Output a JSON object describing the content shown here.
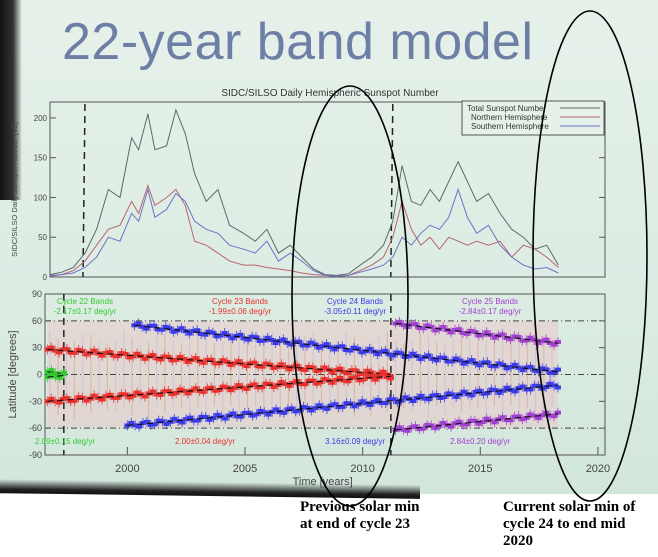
{
  "slide_title": "22-year band model",
  "chart_data": [
    {
      "type": "line",
      "title": "SIDC/SILSO Daily Hemispheric Sunspot Number",
      "xlabel": "",
      "ylabel": "SIDC/SILSO Daily Sunspot Number [V2]",
      "xlim": [
        1996.5,
        2020.3
      ],
      "ylim": [
        0,
        220
      ],
      "yticks": [
        "0",
        "50",
        "100",
        "150",
        "200"
      ],
      "legend_position": "top-right",
      "dashed_markers_year": [
        1998.0,
        2011.2
      ],
      "series": [
        {
          "name": "Total Sunspot Number",
          "color": "#5a6a6a",
          "x": [
            1996.5,
            1997.0,
            1997.5,
            1998.0,
            1998.5,
            1999.0,
            1999.5,
            2000.0,
            2000.3,
            2000.7,
            2001.0,
            2001.5,
            2001.9,
            2002.3,
            2002.7,
            2003.2,
            2003.7,
            2004.2,
            2004.8,
            2005.3,
            2005.8,
            2006.3,
            2006.8,
            2007.3,
            2007.8,
            2008.3,
            2008.8,
            2009.3,
            2009.8,
            2010.3,
            2010.8,
            2011.2,
            2011.6,
            2012.0,
            2012.4,
            2012.8,
            2013.2,
            2013.6,
            2014.0,
            2014.4,
            2014.8,
            2015.3,
            2015.8,
            2016.3,
            2016.8,
            2017.3,
            2017.8,
            2018.3
          ],
          "y": [
            3,
            6,
            12,
            30,
            60,
            110,
            100,
            175,
            160,
            205,
            160,
            165,
            210,
            180,
            130,
            95,
            110,
            65,
            55,
            45,
            60,
            30,
            40,
            25,
            10,
            3,
            2,
            4,
            15,
            25,
            40,
            70,
            140,
            95,
            90,
            110,
            95,
            120,
            145,
            120,
            95,
            105,
            80,
            60,
            50,
            35,
            40,
            15
          ]
        },
        {
          "name": "Northern Hemisphere",
          "color": "#b8646e",
          "x": [
            1996.5,
            1997.0,
            1997.5,
            1998.0,
            1998.5,
            1999.0,
            1999.5,
            2000.0,
            2000.3,
            2000.7,
            2001.0,
            2001.5,
            2001.9,
            2002.3,
            2002.7,
            2003.2,
            2003.7,
            2004.2,
            2004.8,
            2005.3,
            2005.8,
            2006.3,
            2006.8,
            2007.3,
            2007.8,
            2008.3,
            2008.8,
            2009.3,
            2009.8,
            2010.3,
            2010.8,
            2011.2,
            2011.6,
            2012.0,
            2012.4,
            2012.8,
            2013.2,
            2013.6,
            2014.0,
            2014.4,
            2014.8,
            2015.3,
            2015.8,
            2016.3,
            2016.8,
            2017.3,
            2017.8,
            2018.3
          ],
          "y": [
            2,
            3,
            8,
            20,
            40,
            60,
            65,
            95,
            80,
            115,
            90,
            100,
            110,
            90,
            45,
            40,
            30,
            20,
            15,
            15,
            12,
            10,
            8,
            5,
            3,
            2,
            1,
            2,
            8,
            15,
            25,
            50,
            95,
            60,
            40,
            50,
            35,
            50,
            45,
            40,
            45,
            40,
            45,
            25,
            40,
            35,
            25,
            12
          ]
        },
        {
          "name": "Southern Hemisphere",
          "color": "#6b72c8",
          "x": [
            1996.5,
            1997.0,
            1997.5,
            1998.0,
            1998.5,
            1999.0,
            1999.5,
            2000.0,
            2000.3,
            2000.7,
            2001.0,
            2001.5,
            2001.9,
            2002.3,
            2002.7,
            2003.2,
            2003.7,
            2004.2,
            2004.8,
            2005.3,
            2005.8,
            2006.3,
            2006.8,
            2007.3,
            2007.8,
            2008.3,
            2008.8,
            2009.3,
            2009.8,
            2010.3,
            2010.8,
            2011.2,
            2011.6,
            2012.0,
            2012.4,
            2012.8,
            2013.2,
            2013.6,
            2014.0,
            2014.4,
            2014.8,
            2015.3,
            2015.8,
            2016.3,
            2016.8,
            2017.3,
            2017.8,
            2018.3
          ],
          "y": [
            1,
            3,
            5,
            12,
            25,
            50,
            45,
            80,
            70,
            110,
            75,
            85,
            105,
            95,
            70,
            60,
            55,
            40,
            35,
            30,
            45,
            20,
            30,
            20,
            8,
            2,
            1,
            2,
            6,
            10,
            15,
            25,
            50,
            40,
            55,
            65,
            60,
            75,
            110,
            75,
            55,
            65,
            40,
            25,
            15,
            10,
            12,
            5
          ]
        }
      ]
    },
    {
      "type": "scatter",
      "title": "",
      "xlabel": "Time [years]",
      "ylabel": "Latitude [degrees]",
      "xlim": [
        1996.5,
        2020.3
      ],
      "ylim": [
        -90,
        90
      ],
      "xticks": [
        "2000",
        "2005",
        "2010",
        "2015",
        "2020"
      ],
      "yticks": [
        "90",
        "60",
        "30",
        "0",
        "-30",
        "-60",
        "-90"
      ],
      "dashed_markers_year": [
        1997.3,
        2011.2
      ],
      "series": [
        {
          "name": "Cycle 22 Bands",
          "color": "#33cc33",
          "label_top": "Cycle 22 Bands",
          "rate_north": "-2.17±0.17 deg/yr",
          "rate_south": "2.09±0.15 deg/yr",
          "north": [
            [
              1996.6,
              3
            ],
            [
              1997.3,
              1
            ]
          ],
          "south": [
            [
              1996.6,
              -3
            ],
            [
              1997.3,
              -1
            ]
          ]
        },
        {
          "name": "Cycle 23 Bands",
          "color": "#e8302c",
          "label_top": "Cycle 23 Bands",
          "rate_north": "-1.99±0.06 deg/yr",
          "rate_south": "2.00±0.04 deg/yr",
          "north": [
            [
              1996.6,
              28
            ],
            [
              2011.2,
              0
            ]
          ],
          "south": [
            [
              1996.6,
              -30
            ],
            [
              2011.2,
              -2
            ]
          ]
        },
        {
          "name": "Cycle 24 Bands",
          "color": "#3a3ae6",
          "label_top": "Cycle 24 Bands",
          "rate_north": "-3.05±0.11 deg/yr",
          "rate_south": "3.16±0.09 deg/yr",
          "north": [
            [
              2000.3,
              55
            ],
            [
              2018.3,
              3
            ]
          ],
          "south": [
            [
              2000.0,
              -57
            ],
            [
              2018.3,
              -12
            ]
          ]
        },
        {
          "name": "Cycle 25 Bands",
          "color": "#a040d0",
          "label_top": "Cycle 25 Bands",
          "rate_north": "-2.84±0.17 deg/yr",
          "rate_south": "2.84±0.20 deg/yr",
          "north": [
            [
              2011.4,
              57
            ],
            [
              2018.3,
              35
            ]
          ],
          "south": [
            [
              2011.4,
              -62
            ],
            [
              2018.3,
              -44
            ]
          ]
        }
      ]
    }
  ],
  "annotations": [
    {
      "text_line1": "Previous solar min",
      "text_line2": "at end of cycle 23"
    },
    {
      "text_line1": "Current solar min of",
      "text_line2": "cycle 24 to end mid",
      "text_line3": "2020"
    }
  ]
}
